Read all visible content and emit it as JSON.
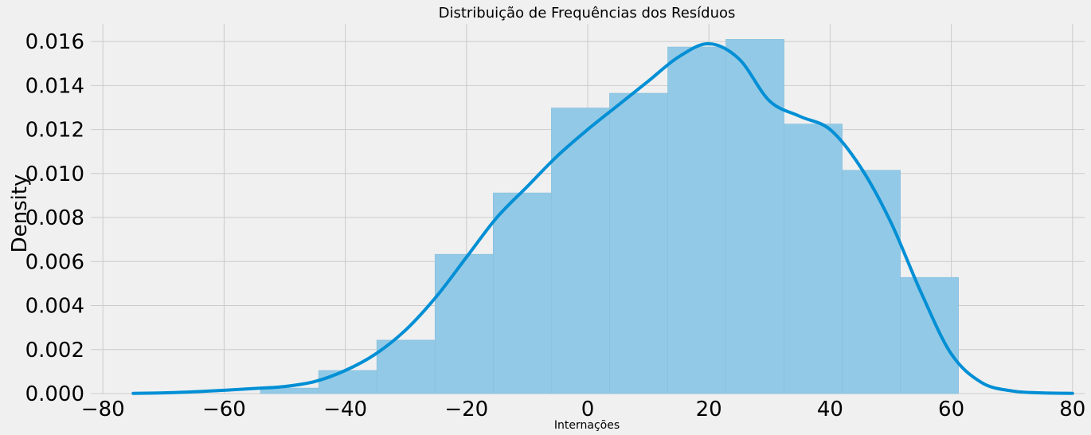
{
  "chart_data": {
    "type": "bar",
    "title": "Distribuição de Frequências dos Resíduos",
    "xlabel": "Internações",
    "ylabel": "Density",
    "xlim": [
      -82,
      82
    ],
    "ylim": [
      0,
      0.0168
    ],
    "xticks": [
      -80,
      -60,
      -40,
      -20,
      0,
      20,
      40,
      60,
      80
    ],
    "xtick_labels": [
      "−80",
      "−60",
      "−40",
      "−20",
      "0",
      "20",
      "40",
      "60",
      "80"
    ],
    "yticks": [
      0,
      0.002,
      0.004,
      0.006,
      0.008,
      0.01,
      0.012,
      0.014,
      0.016
    ],
    "ytick_labels": [
      "0.000",
      "0.002",
      "0.004",
      "0.006",
      "0.008",
      "0.010",
      "0.012",
      "0.014",
      "0.016"
    ],
    "grid": true,
    "colors": {
      "bars": "#92c9e6",
      "kde": "#008fd5",
      "grid": "#cbcbcb",
      "background": "#f0f0f0"
    },
    "histogram": {
      "bin_edges": [
        -54,
        -44.4,
        -34.8,
        -25.2,
        -15.6,
        -6.0,
        3.6,
        13.2,
        22.8,
        32.4,
        42.0,
        51.6,
        61.2
      ],
      "density": [
        0.00025,
        0.00105,
        0.00243,
        0.00633,
        0.00912,
        0.01298,
        0.01365,
        0.01575,
        0.0161,
        0.01225,
        0.01015,
        0.00528
      ]
    },
    "kde": {
      "x": [
        -75,
        -70,
        -65,
        -60,
        -55,
        -50,
        -45,
        -40,
        -35,
        -30,
        -25,
        -20,
        -15,
        -10,
        -5,
        0,
        5,
        10,
        15,
        20,
        25,
        30,
        35,
        40,
        45,
        50,
        55,
        60,
        65,
        70,
        75,
        80
      ],
      "y": [
        1e-05,
        3e-05,
        8e-05,
        0.00015,
        0.00023,
        0.00032,
        0.00055,
        0.00105,
        0.0018,
        0.0029,
        0.0044,
        0.0062,
        0.008,
        0.0094,
        0.0108,
        0.012,
        0.0131,
        0.0142,
        0.0153,
        0.0159,
        0.0152,
        0.0133,
        0.0126,
        0.012,
        0.0103,
        0.0078,
        0.0046,
        0.0018,
        0.0005,
        0.00012,
        3e-05,
        1e-05
      ]
    }
  }
}
